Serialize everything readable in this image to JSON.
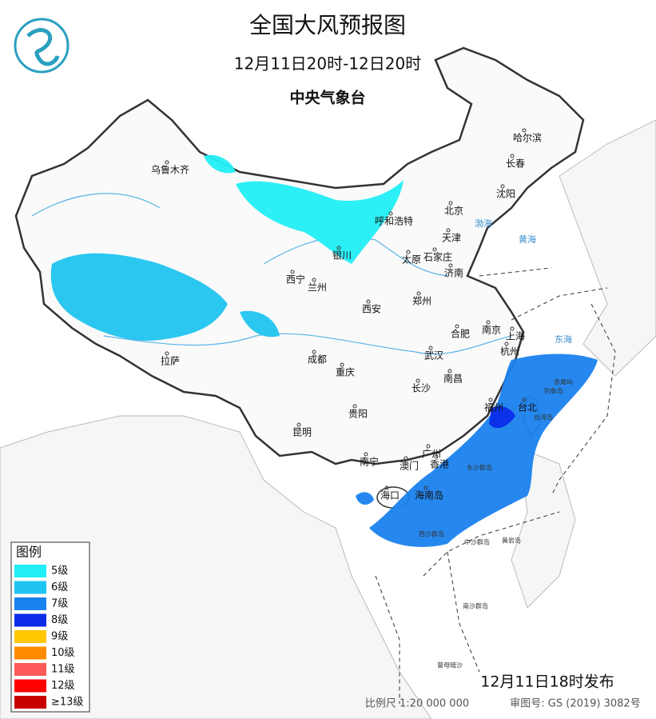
{
  "header": {
    "title": "全国大风预报图",
    "period": "12月11日20时-12日20时",
    "issuer": "中央气象台"
  },
  "cities": [
    "乌鲁木齐",
    "哈尔滨",
    "长春",
    "沈阳",
    "北京",
    "呼和浩特",
    "天津",
    "银川",
    "太原",
    "石家庄",
    "济南",
    "西宁",
    "兰州",
    "郑州",
    "西安",
    "南京",
    "上海",
    "合肥",
    "武汉",
    "杭州",
    "成都",
    "拉萨",
    "重庆",
    "南昌",
    "长沙",
    "福州",
    "台北",
    "贵阳",
    "昆明",
    "广州",
    "南宁",
    "澳门",
    "香港",
    "海口",
    "海南岛"
  ],
  "islands": [
    "东沙群岛",
    "赤尾屿",
    "钓鱼岛",
    "台湾岛",
    "西沙群岛",
    "中沙群岛",
    "黄岩岛",
    "南沙群岛",
    "曾母暗沙"
  ],
  "seas": [
    "渤海",
    "黄海",
    "东海"
  ],
  "legend": {
    "title": "图例",
    "items": [
      {
        "label": "5级",
        "color": "#22eef5"
      },
      {
        "label": "6级",
        "color": "#20c4f0"
      },
      {
        "label": "7级",
        "color": "#1a82ee"
      },
      {
        "label": "8级",
        "color": "#0a2ce8"
      },
      {
        "label": "9级",
        "color": "#ffc800"
      },
      {
        "label": "10级",
        "color": "#ff8c00"
      },
      {
        "label": "11级",
        "color": "#ff5a5a"
      },
      {
        "label": "12级",
        "color": "#ff0000"
      },
      {
        "label": "≥13级",
        "color": "#c80000"
      }
    ]
  },
  "footer": {
    "issued": "12月11日18时发布",
    "scale": "比例尺 1:20 000 000",
    "map_number": "审图号: GS (2019) 3082号"
  }
}
